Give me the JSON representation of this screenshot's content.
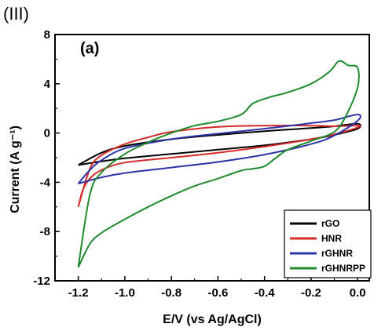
{
  "figure": {
    "panel_tag": "(III)",
    "panel_label": "(a)"
  },
  "colors": {
    "rGO": "#000000",
    "HNR": "#d42a2a",
    "rGHNR": "#2b35a8",
    "rGHNRPP": "#1f8a2c"
  },
  "chart_data": {
    "type": "line",
    "title": "",
    "xlabel": "E/V (vs Ag/AgCl)",
    "ylabel": "Current (A g⁻¹)",
    "xlim": [
      -1.3,
      0.05
    ],
    "ylim": [
      -12,
      8
    ],
    "xticks": [
      -1.2,
      -1.0,
      -0.8,
      -0.6,
      -0.4,
      -0.2,
      0.0
    ],
    "xtick_labels": [
      "-1.2",
      "-1.0",
      "-0.8",
      "-0.6",
      "-0.4",
      "-0.2",
      "0.0"
    ],
    "yticks": [
      -12,
      -8,
      -4,
      0,
      4,
      8
    ],
    "ytick_labels": [
      "-12",
      "-8",
      "-4",
      "0",
      "4",
      "8"
    ],
    "grid": false,
    "legend_position": "bottom-right",
    "series": [
      {
        "name": "rGO",
        "color": "#000000",
        "points": [
          [
            -1.2,
            -2.6
          ],
          [
            -1.1,
            -2.3
          ],
          [
            -1.0,
            -2.05
          ],
          [
            -0.8,
            -1.7
          ],
          [
            -0.6,
            -1.35
          ],
          [
            -0.4,
            -1.0
          ],
          [
            -0.2,
            -0.5
          ],
          [
            -0.1,
            -0.15
          ],
          [
            0.0,
            0.35
          ],
          [
            0.0,
            0.75
          ],
          [
            -0.1,
            0.55
          ],
          [
            -0.2,
            0.4
          ],
          [
            -0.4,
            0.15
          ],
          [
            -0.6,
            -0.15
          ],
          [
            -0.8,
            -0.5
          ],
          [
            -1.0,
            -1.05
          ],
          [
            -1.1,
            -1.6
          ],
          [
            -1.2,
            -2.6
          ]
        ]
      },
      {
        "name": "HNR",
        "color": "#d42a2a",
        "points": [
          [
            -1.2,
            -6.0
          ],
          [
            -1.18,
            -4.6
          ],
          [
            -1.15,
            -3.7
          ],
          [
            -1.1,
            -3.0
          ],
          [
            -1.0,
            -2.4
          ],
          [
            -0.8,
            -2.0
          ],
          [
            -0.6,
            -1.6
          ],
          [
            -0.4,
            -1.1
          ],
          [
            -0.2,
            -0.5
          ],
          [
            -0.1,
            -0.1
          ],
          [
            0.0,
            0.45
          ],
          [
            0.0,
            0.6
          ],
          [
            -0.1,
            0.55
          ],
          [
            -0.2,
            0.6
          ],
          [
            -0.4,
            0.6
          ],
          [
            -0.6,
            0.5
          ],
          [
            -0.8,
            0.1
          ],
          [
            -0.9,
            -0.35
          ],
          [
            -1.0,
            -0.9
          ],
          [
            -1.1,
            -1.8
          ],
          [
            -1.15,
            -2.9
          ],
          [
            -1.2,
            -6.0
          ]
        ]
      },
      {
        "name": "rGHNR",
        "color": "#2b35a8",
        "points": [
          [
            -1.2,
            -4.1
          ],
          [
            -1.1,
            -3.6
          ],
          [
            -1.0,
            -3.25
          ],
          [
            -0.8,
            -2.8
          ],
          [
            -0.6,
            -2.35
          ],
          [
            -0.4,
            -1.75
          ],
          [
            -0.2,
            -0.9
          ],
          [
            -0.1,
            -0.2
          ],
          [
            0.0,
            1.0
          ],
          [
            0.0,
            1.5
          ],
          [
            -0.1,
            1.05
          ],
          [
            -0.2,
            0.8
          ],
          [
            -0.4,
            0.35
          ],
          [
            -0.6,
            -0.05
          ],
          [
            -0.8,
            -0.5
          ],
          [
            -1.0,
            -1.25
          ],
          [
            -1.1,
            -2.2
          ],
          [
            -1.15,
            -3.0
          ],
          [
            -1.2,
            -4.1
          ]
        ]
      },
      {
        "name": "rGHNRPP",
        "color": "#1f8a2c",
        "points": [
          [
            -1.2,
            -10.9
          ],
          [
            -1.15,
            -9.0
          ],
          [
            -1.1,
            -8.1
          ],
          [
            -1.0,
            -7.0
          ],
          [
            -0.9,
            -6.0
          ],
          [
            -0.8,
            -5.1
          ],
          [
            -0.7,
            -4.3
          ],
          [
            -0.6,
            -3.7
          ],
          [
            -0.5,
            -3.05
          ],
          [
            -0.45,
            -2.9
          ],
          [
            -0.4,
            -2.7
          ],
          [
            -0.35,
            -2.0
          ],
          [
            -0.3,
            -1.35
          ],
          [
            -0.2,
            -0.65
          ],
          [
            -0.1,
            0.1
          ],
          [
            -0.05,
            1.4
          ],
          [
            0.0,
            3.7
          ],
          [
            0.0,
            5.3
          ],
          [
            -0.04,
            5.5
          ],
          [
            -0.08,
            5.85
          ],
          [
            -0.12,
            5.0
          ],
          [
            -0.2,
            4.0
          ],
          [
            -0.3,
            3.3
          ],
          [
            -0.38,
            2.9
          ],
          [
            -0.45,
            2.4
          ],
          [
            -0.5,
            1.5
          ],
          [
            -0.6,
            0.95
          ],
          [
            -0.7,
            0.6
          ],
          [
            -0.8,
            0.0
          ],
          [
            -0.9,
            -0.75
          ],
          [
            -1.0,
            -1.7
          ],
          [
            -1.1,
            -3.2
          ],
          [
            -1.15,
            -5.0
          ],
          [
            -1.2,
            -10.9
          ]
        ]
      }
    ]
  }
}
